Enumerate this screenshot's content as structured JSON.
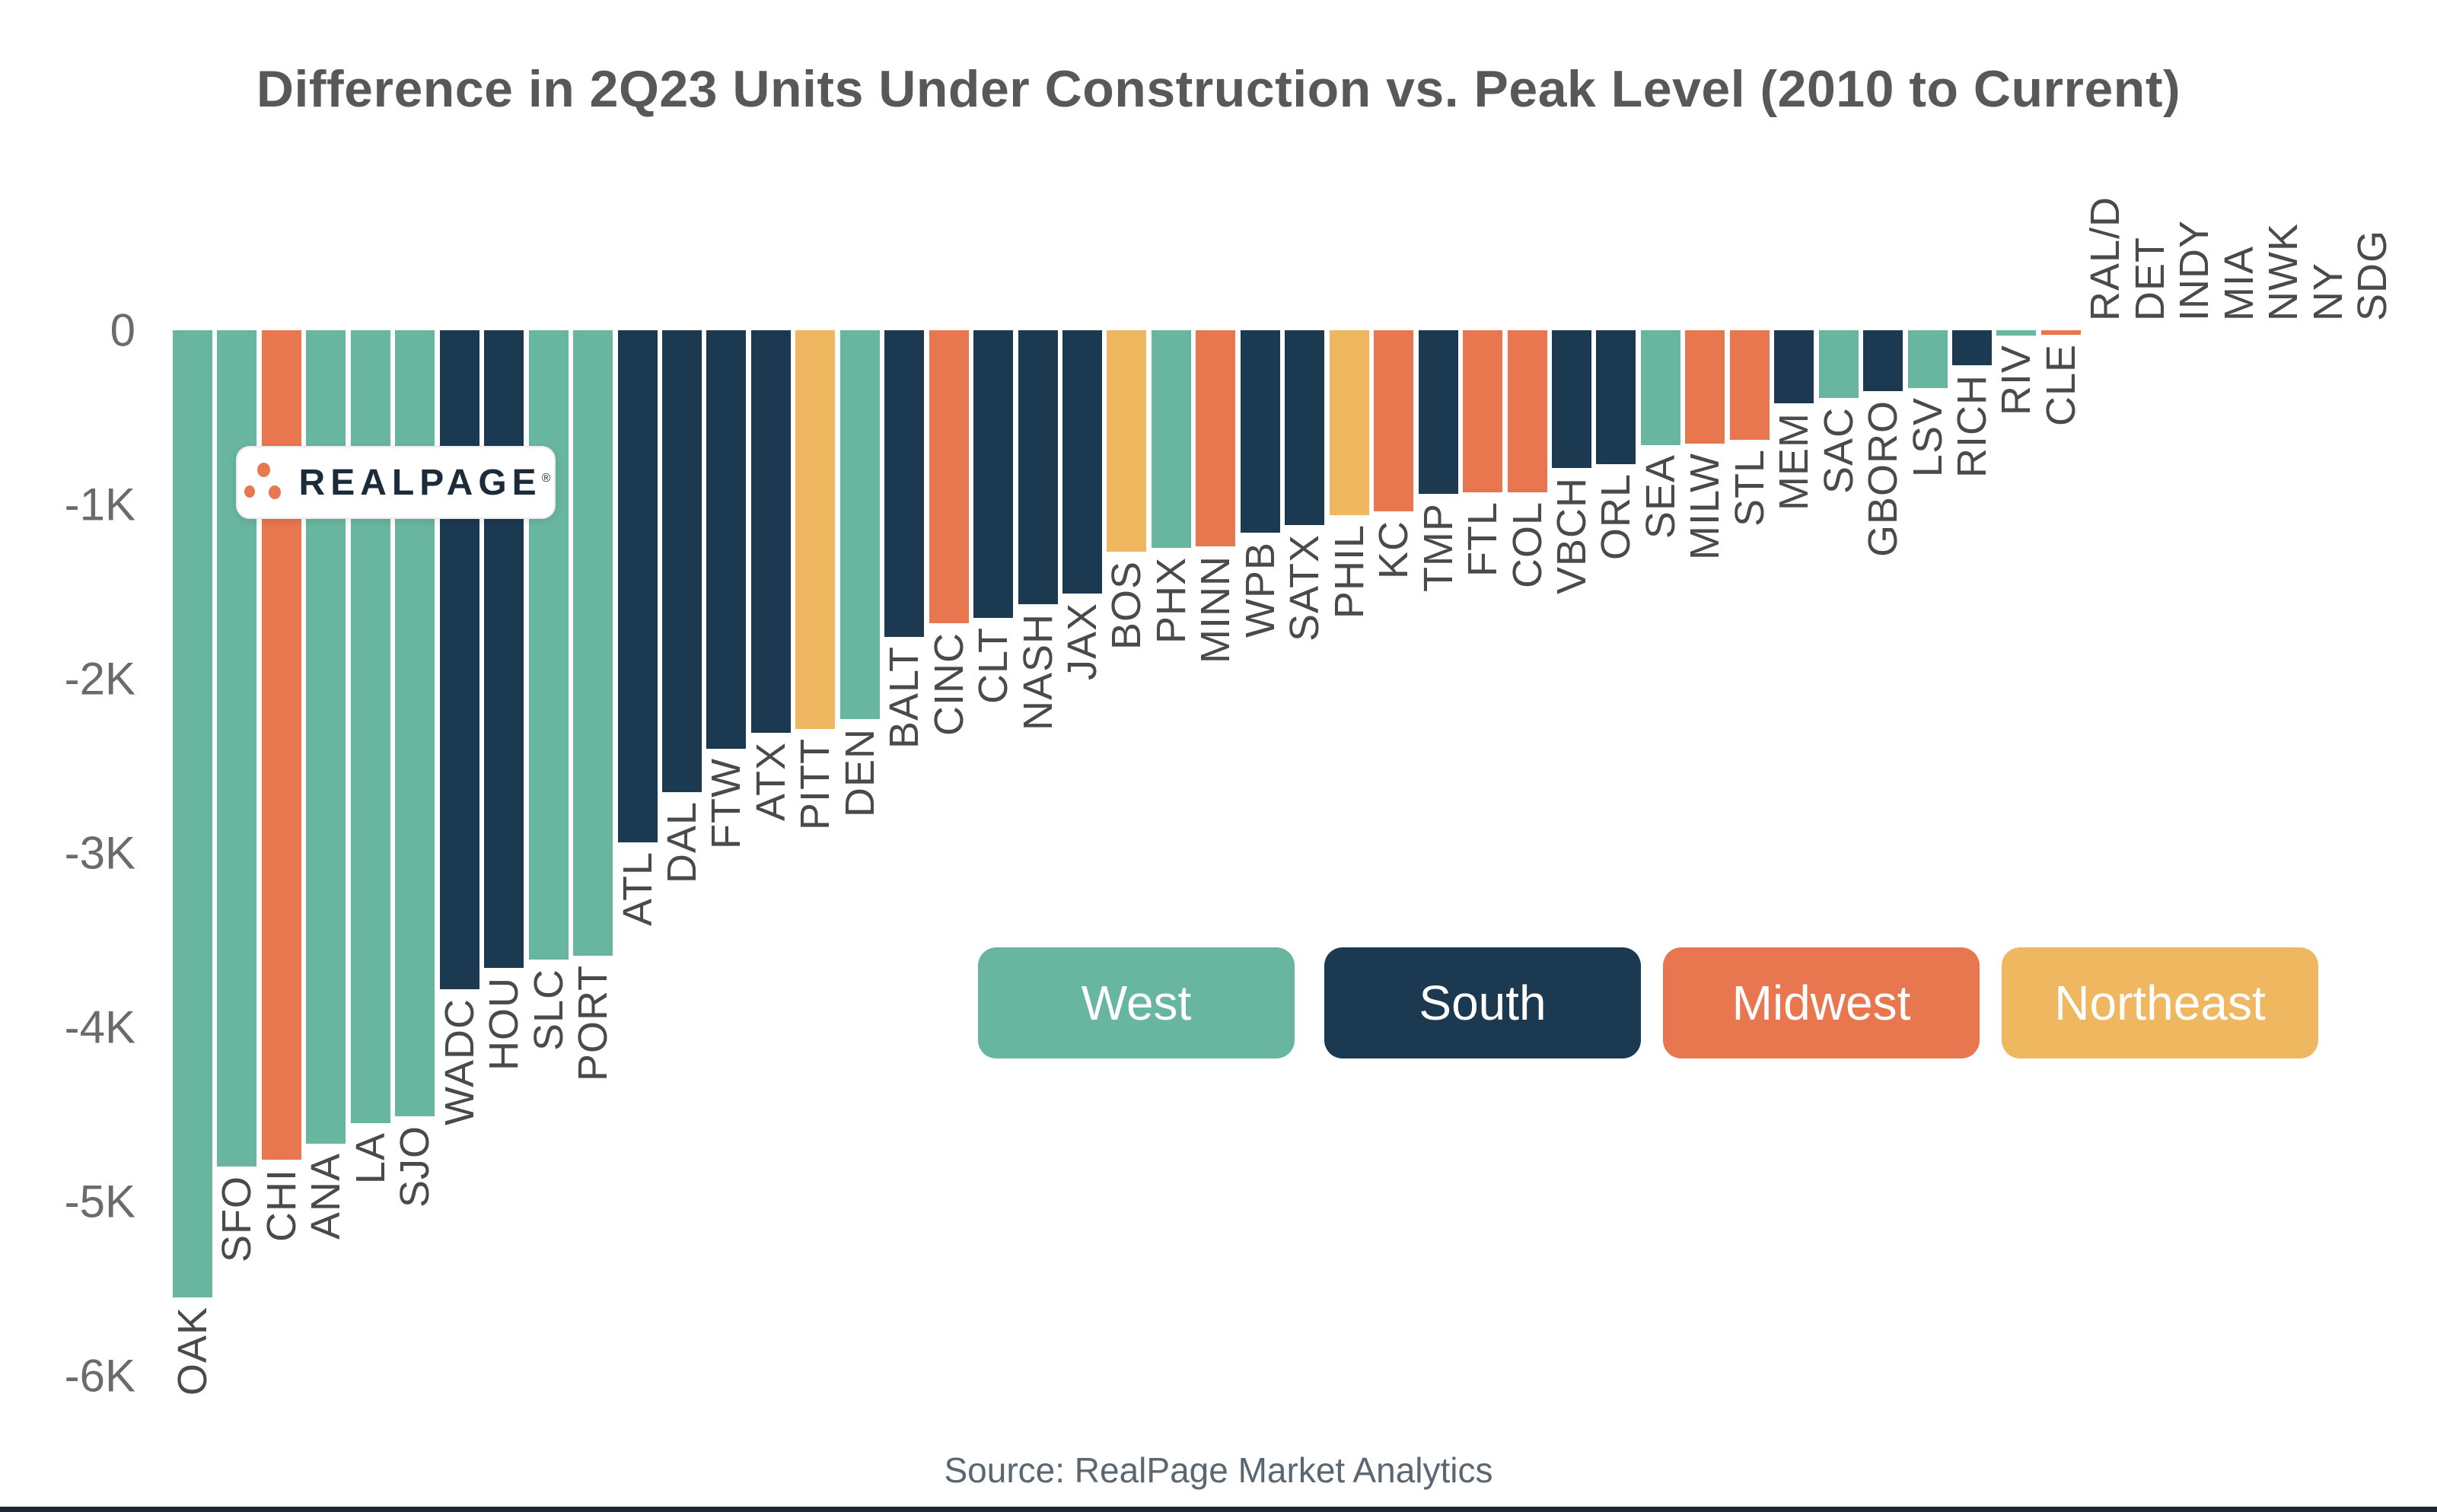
{
  "title": "Difference in 2Q23 Units Under Construction vs. Peak Level (2010 to Current)",
  "source": "Source: RealPage Market Analytics",
  "logo": {
    "brand": "REALPAGE",
    "registered": "®"
  },
  "y_axis": {
    "ticks": [
      {
        "label": "0",
        "value": 0
      },
      {
        "label": "-1K",
        "value": -1000
      },
      {
        "label": "-2K",
        "value": -2000
      },
      {
        "label": "-3K",
        "value": -3000
      },
      {
        "label": "-4K",
        "value": -4000
      },
      {
        "label": "-5K",
        "value": -5000
      },
      {
        "label": "-6K",
        "value": -6000
      }
    ]
  },
  "legend": [
    {
      "label": "West",
      "color": "#68b6a0"
    },
    {
      "label": "South",
      "color": "#1c3952"
    },
    {
      "label": "Midwest",
      "color": "#e8774f"
    },
    {
      "label": "Northeast",
      "color": "#f0b761"
    }
  ],
  "chart_data": {
    "type": "bar",
    "title": "Difference in 2Q23 Units Under Construction vs. Peak Level (2010 to Current)",
    "xlabel": "",
    "ylabel": "",
    "ylim": [
      -6000,
      0
    ],
    "grid": false,
    "legend_position": "center-right",
    "region_colors": {
      "West": "#68b6a0",
      "South": "#1c3952",
      "Midwest": "#e8774f",
      "Northeast": "#f0b761"
    },
    "markets": [
      {
        "label": "OAK",
        "region": "West",
        "value": -5550
      },
      {
        "label": "SFO",
        "region": "West",
        "value": -4800
      },
      {
        "label": "CHI",
        "region": "Midwest",
        "value": -4760
      },
      {
        "label": "ANA",
        "region": "West",
        "value": -4670
      },
      {
        "label": "LA",
        "region": "West",
        "value": -4550
      },
      {
        "label": "SJO",
        "region": "West",
        "value": -4510
      },
      {
        "label": "WADC",
        "region": "South",
        "value": -3780
      },
      {
        "label": "HOU",
        "region": "South",
        "value": -3660
      },
      {
        "label": "SLC",
        "region": "West",
        "value": -3610
      },
      {
        "label": "PORT",
        "region": "West",
        "value": -3590
      },
      {
        "label": "ATL",
        "region": "South",
        "value": -2940
      },
      {
        "label": "DAL",
        "region": "South",
        "value": -2650
      },
      {
        "label": "FTW",
        "region": "South",
        "value": -2400
      },
      {
        "label": "ATX",
        "region": "South",
        "value": -2310
      },
      {
        "label": "PITT",
        "region": "Northeast",
        "value": -2290
      },
      {
        "label": "DEN",
        "region": "West",
        "value": -2230
      },
      {
        "label": "BALT",
        "region": "South",
        "value": -1760
      },
      {
        "label": "CINC",
        "region": "Midwest",
        "value": -1680
      },
      {
        "label": "CLT",
        "region": "South",
        "value": -1650
      },
      {
        "label": "NASH",
        "region": "South",
        "value": -1570
      },
      {
        "label": "JAX",
        "region": "South",
        "value": -1510
      },
      {
        "label": "BOS",
        "region": "Northeast",
        "value": -1270
      },
      {
        "label": "PHX",
        "region": "West",
        "value": -1250
      },
      {
        "label": "MINN",
        "region": "Midwest",
        "value": -1240
      },
      {
        "label": "WPB",
        "region": "South",
        "value": -1160
      },
      {
        "label": "SATX",
        "region": "South",
        "value": -1120
      },
      {
        "label": "PHIL",
        "region": "Northeast",
        "value": -1060
      },
      {
        "label": "KC",
        "region": "Midwest",
        "value": -1040
      },
      {
        "label": "TMP",
        "region": "South",
        "value": -940
      },
      {
        "label": "FTL",
        "region": "Midwest",
        "value": -930
      },
      {
        "label": "COL",
        "region": "Midwest",
        "value": -930
      },
      {
        "label": "VBCH",
        "region": "South",
        "value": -790
      },
      {
        "label": "ORL",
        "region": "South",
        "value": -770
      },
      {
        "label": "SEA",
        "region": "West",
        "value": -660
      },
      {
        "label": "MILW",
        "region": "Midwest",
        "value": -650
      },
      {
        "label": "STL",
        "region": "Midwest",
        "value": -630
      },
      {
        "label": "MEM",
        "region": "South",
        "value": -420
      },
      {
        "label": "SAC",
        "region": "West",
        "value": -390
      },
      {
        "label": "GBORO",
        "region": "South",
        "value": -350
      },
      {
        "label": "LSV",
        "region": "West",
        "value": -330
      },
      {
        "label": "RICH",
        "region": "South",
        "value": -200
      },
      {
        "label": "RIV",
        "region": "West",
        "value": -30
      },
      {
        "label": "CLE",
        "region": "Midwest",
        "value": -25
      },
      {
        "label": "RAL/D",
        "region": null,
        "value": 0
      },
      {
        "label": "DET",
        "region": null,
        "value": 0
      },
      {
        "label": "INDY",
        "region": null,
        "value": 0
      },
      {
        "label": "MIA",
        "region": null,
        "value": 0
      },
      {
        "label": "NWK",
        "region": null,
        "value": 0
      },
      {
        "label": "NY",
        "region": null,
        "value": 0
      },
      {
        "label": "SDG",
        "region": null,
        "value": 0
      }
    ]
  }
}
